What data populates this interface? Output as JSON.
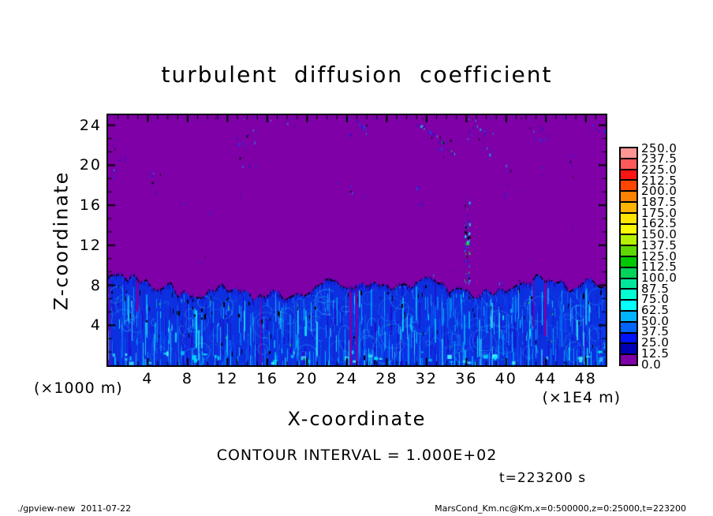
{
  "title": "turbulent diffusion coefficient",
  "axes": {
    "x": {
      "label": "X-coordinate",
      "units": "(×1E4 m)",
      "range": [
        0,
        50
      ],
      "major_ticks": [
        4,
        8,
        12,
        16,
        20,
        24,
        28,
        32,
        36,
        40,
        44,
        48
      ],
      "minor_tick_step": 1
    },
    "z": {
      "label": "Z-coordinate",
      "units": "(×1000 m)",
      "range": [
        0,
        25
      ],
      "major_ticks": [
        4,
        8,
        12,
        16,
        20,
        24
      ],
      "minor_ticks_between_major": 2
    }
  },
  "colorbar": {
    "labels_top_to_bottom": [
      "250.0",
      "237.5",
      "225.0",
      "212.5",
      "200.0",
      "187.5",
      "175.0",
      "162.5",
      "150.0",
      "137.5",
      "125.0",
      "112.5",
      "100.0",
      "87.5",
      "75.0",
      "62.5",
      "50.0",
      "37.5",
      "25.0",
      "12.5",
      "0.0"
    ],
    "colors_top_to_bottom": [
      "#ff9696",
      "#ff5a5a",
      "#ff1414",
      "#ff4600",
      "#ff8200",
      "#ffb400",
      "#ffe600",
      "#fafa00",
      "#b4f000",
      "#5fd700",
      "#00c800",
      "#00d25a",
      "#00e69b",
      "#00ffd2",
      "#00ffff",
      "#00b4ff",
      "#0064ff",
      "#0014ff",
      "#0000b4",
      "#7e00a6"
    ]
  },
  "annotations": {
    "contour_interval": "CONTOUR INTERVAL = 1.000E+02",
    "time": "t=223200 s"
  },
  "footer": {
    "left": "./gpview-new  2011-07-22",
    "right": "MarsCond_Km.nc@Km,x=0:500000,z=0:25000,t=223200"
  },
  "colors": {
    "background": "#ffffff",
    "plot_background": "#7e00a6",
    "frame": "#000000",
    "layer_base": "#0c2fe0"
  },
  "chart_data": {
    "type": "heatmap",
    "title": "turbulent diffusion coefficient",
    "xlabel": "X-coordinate (×1E4 m)",
    "ylabel": "Z-coordinate (×1000 m)",
    "xlim": [
      0,
      50
    ],
    "ylim": [
      0,
      25
    ],
    "x_ticks": [
      4,
      8,
      12,
      16,
      20,
      24,
      28,
      32,
      36,
      40,
      44,
      48
    ],
    "y_ticks": [
      4,
      8,
      12,
      16,
      20,
      24
    ],
    "levels": [
      0,
      12.5,
      25,
      37.5,
      50,
      62.5,
      75,
      87.5,
      100,
      112.5,
      125,
      137.5,
      150,
      162.5,
      175,
      187.5,
      200,
      212.5,
      225,
      237.5,
      250
    ],
    "contour_interval": 100,
    "time": "t=223200 s",
    "field_summary": {
      "background_value_range": [
        0,
        12.5
      ],
      "turbulent_layer": {
        "z_extent": [
          0,
          8
        ],
        "typical_values": [
          25,
          100
        ],
        "description": "convective boundary layer of blue-cyan vertical plume streaks spanning the entire x range, irregular top near z≈7-8 with black contour specks and rare green patches"
      },
      "notable_features": [
        "sparse turbulent speck patches in the quiescent purple region near the top (z≈20-25) around x≈1-5, 13, 24-25, 30-34, 37-40, 42-44",
        "narrow broken plume of specks near x≈36 extending from the layer top (z≈8) up to z≈17 with cyan/green/black core",
        "isolated small specks at mid heights (z≈9-16) near x≈24, 31, 40, 48"
      ]
    }
  }
}
